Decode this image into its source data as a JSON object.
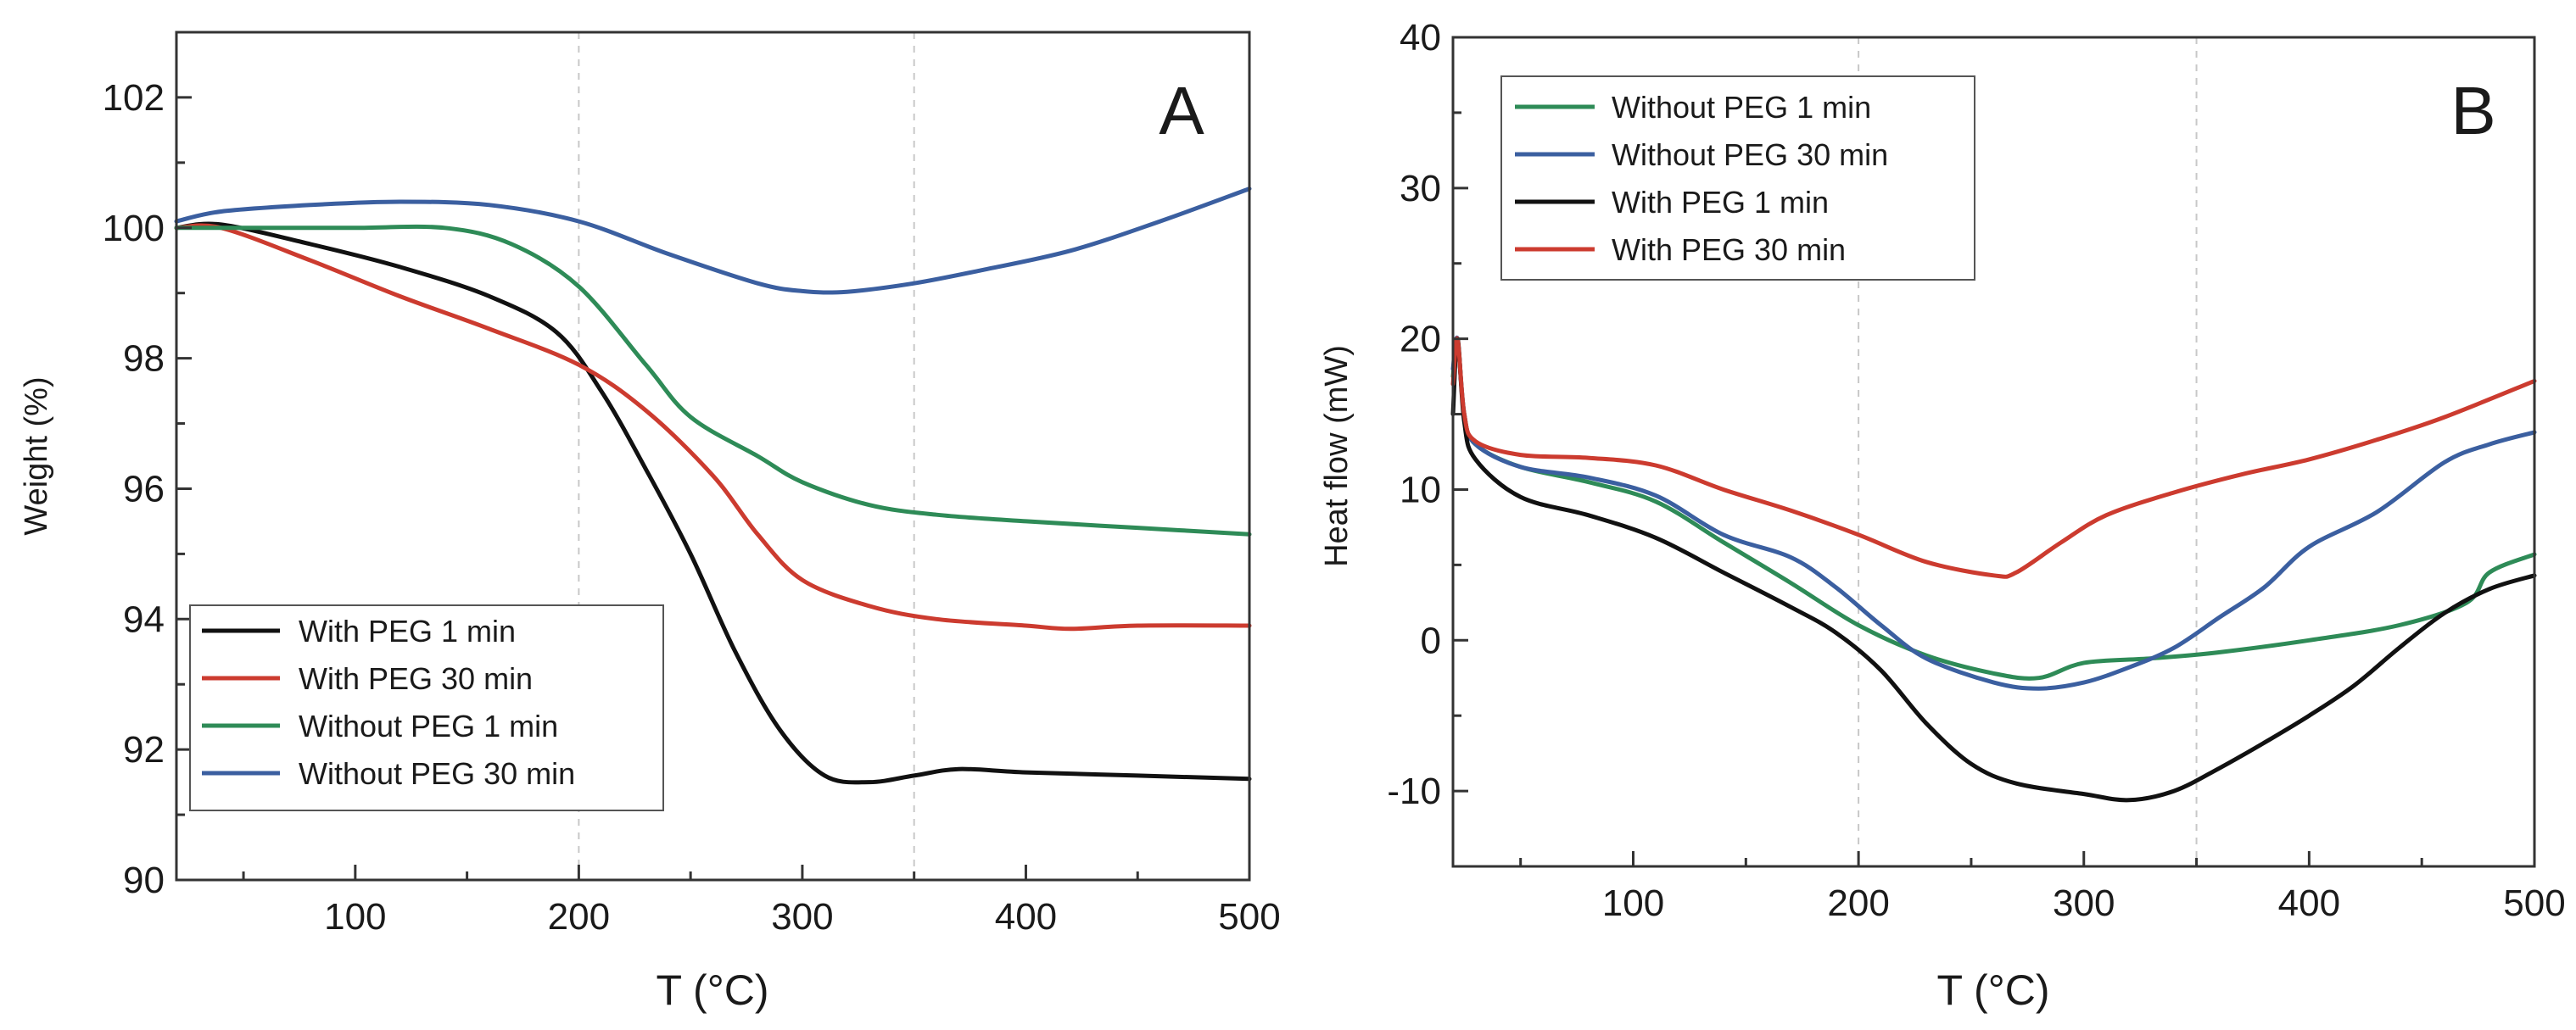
{
  "chart_data": [
    {
      "panel": "A",
      "type": "line",
      "title": "",
      "panel_label": "A",
      "xlabel": "T (°C)",
      "ylabel": "Weight (%)",
      "xlim": [
        20,
        500
      ],
      "ylim": [
        90,
        103
      ],
      "x_ticks": [
        100,
        200,
        300,
        400,
        500
      ],
      "y_ticks": [
        90,
        92,
        94,
        96,
        98,
        100,
        102
      ],
      "grid": "vertical dashed at 200 and 350",
      "grid_x": [
        200,
        350
      ],
      "legend": {
        "placement": "bottom-left",
        "entries": [
          "With PEG 1 min",
          "With PEG 30 min",
          "Without PEG 1 min",
          "Without PEG 30 min"
        ]
      },
      "series": [
        {
          "name": "With PEG 1 min",
          "color": "#111111",
          "points": [
            [
              20,
              100.0
            ],
            [
              40,
              100.05
            ],
            [
              80,
              99.75
            ],
            [
              120,
              99.4
            ],
            [
              160,
              98.95
            ],
            [
              190,
              98.4
            ],
            [
              210,
              97.5
            ],
            [
              230,
              96.3
            ],
            [
              250,
              95.0
            ],
            [
              270,
              93.5
            ],
            [
              290,
              92.3
            ],
            [
              310,
              91.6
            ],
            [
              330,
              91.5
            ],
            [
              350,
              91.6
            ],
            [
              370,
              91.7
            ],
            [
              400,
              91.65
            ],
            [
              450,
              91.6
            ],
            [
              500,
              91.55
            ]
          ]
        },
        {
          "name": "With PEG 30 min",
          "color": "#cc3b2f",
          "points": [
            [
              20,
              100.0
            ],
            [
              40,
              100.0
            ],
            [
              80,
              99.5
            ],
            [
              120,
              98.95
            ],
            [
              160,
              98.45
            ],
            [
              200,
              97.9
            ],
            [
              230,
              97.2
            ],
            [
              260,
              96.2
            ],
            [
              280,
              95.3
            ],
            [
              300,
              94.6
            ],
            [
              330,
              94.2
            ],
            [
              360,
              94.0
            ],
            [
              400,
              93.9
            ],
            [
              420,
              93.85
            ],
            [
              450,
              93.9
            ],
            [
              500,
              93.9
            ]
          ]
        },
        {
          "name": "Without PEG 1 min",
          "color": "#2e8b57",
          "points": [
            [
              20,
              100.0
            ],
            [
              60,
              100.0
            ],
            [
              100,
              100.0
            ],
            [
              140,
              100.0
            ],
            [
              170,
              99.75
            ],
            [
              200,
              99.1
            ],
            [
              230,
              97.9
            ],
            [
              250,
              97.1
            ],
            [
              280,
              96.5
            ],
            [
              300,
              96.1
            ],
            [
              330,
              95.75
            ],
            [
              360,
              95.6
            ],
            [
              400,
              95.5
            ],
            [
              450,
              95.4
            ],
            [
              500,
              95.3
            ]
          ]
        },
        {
          "name": "Without PEG 30 min",
          "color": "#3b5fa0",
          "points": [
            [
              20,
              100.1
            ],
            [
              40,
              100.25
            ],
            [
              80,
              100.35
            ],
            [
              120,
              100.4
            ],
            [
              160,
              100.35
            ],
            [
              200,
              100.1
            ],
            [
              240,
              99.6
            ],
            [
              280,
              99.15
            ],
            [
              300,
              99.03
            ],
            [
              320,
              99.02
            ],
            [
              350,
              99.15
            ],
            [
              380,
              99.35
            ],
            [
              420,
              99.65
            ],
            [
              460,
              100.1
            ],
            [
              500,
              100.6
            ]
          ]
        }
      ]
    },
    {
      "panel": "B",
      "type": "line",
      "title": "",
      "panel_label": "B",
      "xlabel": "T (°C)",
      "ylabel": "Heat flow (mW)",
      "xlim": [
        20,
        500
      ],
      "ylim": [
        -15,
        40
      ],
      "x_ticks": [
        100,
        200,
        300,
        400,
        500
      ],
      "y_ticks": [
        -10,
        0,
        10,
        20,
        30,
        40
      ],
      "grid": "vertical dashed at 200 and 350",
      "grid_x": [
        200,
        350
      ],
      "legend": {
        "placement": "top-left",
        "entries": [
          "Without PEG 1 min",
          "Without PEG 30 min",
          "With PEG 1 min",
          "With PEG 30 min"
        ]
      },
      "series": [
        {
          "name": "Without PEG 1 min",
          "color": "#2e8b57",
          "points": [
            [
              20,
              17.5
            ],
            [
              22,
              20.0
            ],
            [
              25,
              15.0
            ],
            [
              30,
              13.0
            ],
            [
              50,
              11.5
            ],
            [
              80,
              10.5
            ],
            [
              110,
              9.2
            ],
            [
              140,
              6.5
            ],
            [
              170,
              3.8
            ],
            [
              200,
              1.0
            ],
            [
              230,
              -1.0
            ],
            [
              260,
              -2.2
            ],
            [
              280,
              -2.5
            ],
            [
              300,
              -1.5
            ],
            [
              330,
              -1.2
            ],
            [
              360,
              -0.8
            ],
            [
              400,
              0.0
            ],
            [
              440,
              1.0
            ],
            [
              470,
              2.5
            ],
            [
              480,
              4.5
            ],
            [
              500,
              5.7
            ]
          ]
        },
        {
          "name": "Without PEG 30 min",
          "color": "#3b5fa0",
          "points": [
            [
              20,
              18.0
            ],
            [
              22,
              20.0
            ],
            [
              25,
              15.0
            ],
            [
              30,
              13.0
            ],
            [
              50,
              11.5
            ],
            [
              80,
              10.8
            ],
            [
              110,
              9.6
            ],
            [
              140,
              7.0
            ],
            [
              170,
              5.5
            ],
            [
              190,
              3.5
            ],
            [
              210,
              1.0
            ],
            [
              230,
              -1.2
            ],
            [
              260,
              -2.8
            ],
            [
              280,
              -3.2
            ],
            [
              300,
              -2.8
            ],
            [
              320,
              -1.8
            ],
            [
              340,
              -0.5
            ],
            [
              360,
              1.5
            ],
            [
              380,
              3.5
            ],
            [
              400,
              6.2
            ],
            [
              430,
              8.5
            ],
            [
              460,
              11.8
            ],
            [
              480,
              13.0
            ],
            [
              500,
              13.8
            ]
          ]
        },
        {
          "name": "With PEG 1 min",
          "color": "#111111",
          "points": [
            [
              20,
              15.0
            ],
            [
              22,
              20.0
            ],
            [
              25,
              14.5
            ],
            [
              30,
              12.0
            ],
            [
              50,
              9.5
            ],
            [
              80,
              8.3
            ],
            [
              110,
              6.8
            ],
            [
              140,
              4.5
            ],
            [
              170,
              2.2
            ],
            [
              190,
              0.5
            ],
            [
              210,
              -2.0
            ],
            [
              230,
              -5.5
            ],
            [
              250,
              -8.2
            ],
            [
              270,
              -9.5
            ],
            [
              300,
              -10.2
            ],
            [
              320,
              -10.6
            ],
            [
              340,
              -10.0
            ],
            [
              360,
              -8.5
            ],
            [
              380,
              -6.8
            ],
            [
              400,
              -5.0
            ],
            [
              420,
              -3.0
            ],
            [
              440,
              -0.5
            ],
            [
              460,
              1.8
            ],
            [
              480,
              3.4
            ],
            [
              500,
              4.3
            ]
          ]
        },
        {
          "name": "With PEG 30 min",
          "color": "#cc3b2f",
          "points": [
            [
              20,
              17.0
            ],
            [
              22,
              20.0
            ],
            [
              25,
              15.0
            ],
            [
              30,
              13.2
            ],
            [
              50,
              12.3
            ],
            [
              80,
              12.1
            ],
            [
              110,
              11.6
            ],
            [
              140,
              10.0
            ],
            [
              170,
              8.6
            ],
            [
              200,
              7.0
            ],
            [
              230,
              5.2
            ],
            [
              260,
              4.3
            ],
            [
              270,
              4.5
            ],
            [
              290,
              6.5
            ],
            [
              310,
              8.3
            ],
            [
              340,
              9.8
            ],
            [
              370,
              11.0
            ],
            [
              400,
              12.0
            ],
            [
              430,
              13.3
            ],
            [
              460,
              14.8
            ],
            [
              500,
              17.2
            ]
          ]
        }
      ]
    }
  ]
}
